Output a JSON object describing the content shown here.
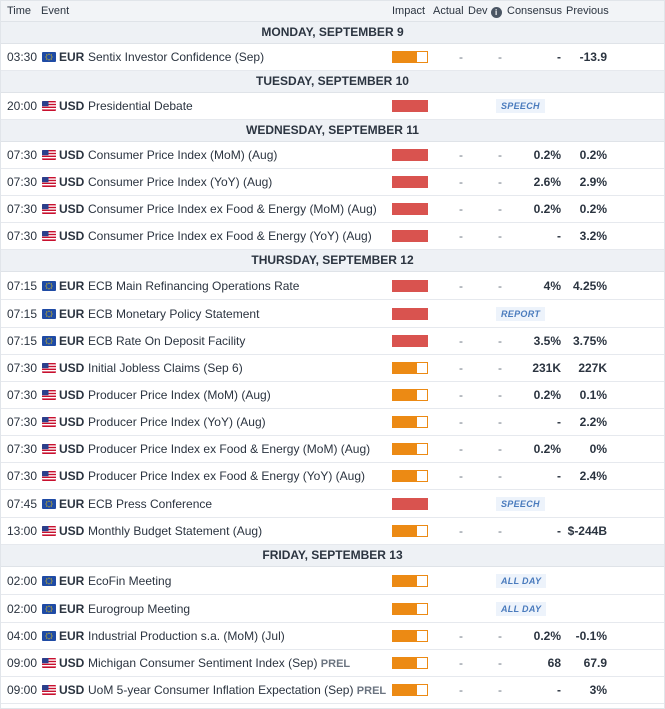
{
  "header": {
    "time": "Time",
    "event": "Event",
    "impact": "Impact",
    "actual": "Actual",
    "dev": "Dev",
    "consensus": "Consensus",
    "previous": "Previous",
    "info_glyph": "i"
  },
  "colors": {
    "high": "#d9534f",
    "medium": "#ec8a14",
    "badge_text": "#4a7bbd"
  },
  "days": [
    {
      "label": "MONDAY, SEPTEMBER 9",
      "rows": [
        {
          "time": "03:30",
          "cur": "EUR",
          "flag": "eu-flag-icon",
          "event": "Sentix Investor Confidence (Sep)",
          "impact": "med",
          "actual": "-",
          "dev": "-",
          "cons": "-",
          "prev": "-13.9",
          "h": 27
        }
      ]
    },
    {
      "label": "TUESDAY, SEPTEMBER 10",
      "rows": [
        {
          "time": "20:00",
          "cur": "USD",
          "flag": "us-flag-icon",
          "event": "Presidential Debate",
          "impact": "high",
          "badge": "SPEECH",
          "h": 27
        }
      ]
    },
    {
      "label": "WEDNESDAY, SEPTEMBER 11",
      "rows": [
        {
          "time": "07:30",
          "cur": "USD",
          "flag": "us-flag-icon",
          "event": "Consumer Price Index (MoM) (Aug)",
          "impact": "high",
          "actual": "-",
          "dev": "-",
          "cons": "0.2%",
          "prev": "0.2%",
          "h": 27
        },
        {
          "time": "07:30",
          "cur": "USD",
          "flag": "us-flag-icon",
          "event": "Consumer Price Index (YoY) (Aug)",
          "impact": "high",
          "actual": "-",
          "dev": "-",
          "cons": "2.6%",
          "prev": "2.9%",
          "h": 27
        },
        {
          "time": "07:30",
          "cur": "USD",
          "flag": "us-flag-icon",
          "event": "Consumer Price Index ex Food & Energy (MoM) (Aug)",
          "impact": "high",
          "actual": "-",
          "dev": "-",
          "cons": "0.2%",
          "prev": "0.2%",
          "h": 27
        },
        {
          "time": "07:30",
          "cur": "USD",
          "flag": "us-flag-icon",
          "event": "Consumer Price Index ex Food & Energy (YoY) (Aug)",
          "impact": "high",
          "actual": "-",
          "dev": "-",
          "cons": "-",
          "prev": "3.2%",
          "h": 27
        }
      ]
    },
    {
      "label": "THURSDAY, SEPTEMBER 12",
      "rows": [
        {
          "time": "07:15",
          "cur": "EUR",
          "flag": "eu-flag-icon",
          "event": "ECB Main Refinancing Operations Rate",
          "impact": "high",
          "actual": "-",
          "dev": "-",
          "cons": "4%",
          "prev": "4.25%",
          "h": 28
        },
        {
          "time": "07:15",
          "cur": "EUR",
          "flag": "eu-flag-icon",
          "event": "ECB Monetary Policy Statement",
          "impact": "high",
          "badge": "REPORT",
          "h": 28
        },
        {
          "time": "07:15",
          "cur": "EUR",
          "flag": "eu-flag-icon",
          "event": "ECB Rate On Deposit Facility",
          "impact": "high",
          "actual": "-",
          "dev": "-",
          "cons": "3.5%",
          "prev": "3.75%",
          "h": 27
        },
        {
          "time": "07:30",
          "cur": "USD",
          "flag": "us-flag-icon",
          "event": "Initial Jobless Claims (Sep 6)",
          "impact": "med",
          "actual": "-",
          "dev": "-",
          "cons": "231K",
          "prev": "227K",
          "h": 27
        },
        {
          "time": "07:30",
          "cur": "USD",
          "flag": "us-flag-icon",
          "event": "Producer Price Index (MoM) (Aug)",
          "impact": "med",
          "actual": "-",
          "dev": "-",
          "cons": "0.2%",
          "prev": "0.1%",
          "h": 27
        },
        {
          "time": "07:30",
          "cur": "USD",
          "flag": "us-flag-icon",
          "event": "Producer Price Index (YoY) (Aug)",
          "impact": "med",
          "actual": "-",
          "dev": "-",
          "cons": "-",
          "prev": "2.2%",
          "h": 27
        },
        {
          "time": "07:30",
          "cur": "USD",
          "flag": "us-flag-icon",
          "event": "Producer Price Index ex Food & Energy (MoM) (Aug)",
          "impact": "med",
          "actual": "-",
          "dev": "-",
          "cons": "0.2%",
          "prev": "0%",
          "h": 27
        },
        {
          "time": "07:30",
          "cur": "USD",
          "flag": "us-flag-icon",
          "event": "Producer Price Index ex Food & Energy (YoY) (Aug)",
          "impact": "med",
          "actual": "-",
          "dev": "-",
          "cons": "-",
          "prev": "2.4%",
          "h": 27
        },
        {
          "time": "07:45",
          "cur": "EUR",
          "flag": "eu-flag-icon",
          "event": "ECB Press Conference",
          "impact": "high",
          "badge": "SPEECH",
          "h": 28
        },
        {
          "time": "13:00",
          "cur": "USD",
          "flag": "us-flag-icon",
          "event": "Monthly Budget Statement (Aug)",
          "impact": "med",
          "actual": "-",
          "dev": "-",
          "cons": "-",
          "prev": "$-244B",
          "h": 27
        }
      ]
    },
    {
      "label": "FRIDAY, SEPTEMBER 13",
      "rows": [
        {
          "time": "02:00",
          "cur": "EUR",
          "flag": "eu-flag-icon",
          "event": "EcoFin Meeting",
          "impact": "med",
          "badge": "ALL DAY",
          "h": 28
        },
        {
          "time": "02:00",
          "cur": "EUR",
          "flag": "eu-flag-icon",
          "event": "Eurogroup Meeting",
          "impact": "med",
          "badge": "ALL DAY",
          "h": 28
        },
        {
          "time": "04:00",
          "cur": "EUR",
          "flag": "eu-flag-icon",
          "event": "Industrial Production s.a. (MoM) (Jul)",
          "impact": "med",
          "actual": "-",
          "dev": "-",
          "cons": "0.2%",
          "prev": "-0.1%",
          "h": 27
        },
        {
          "time": "09:00",
          "cur": "USD",
          "flag": "us-flag-icon",
          "event": "Michigan Consumer Sentiment Index (Sep)",
          "prel": "PREL",
          "impact": "med",
          "actual": "-",
          "dev": "-",
          "cons": "68",
          "prev": "67.9",
          "h": 27
        },
        {
          "time": "09:00",
          "cur": "USD",
          "flag": "us-flag-icon",
          "event": "UoM 5-year Consumer Inflation Expectation (Sep)",
          "prel": "PREL",
          "impact": "med",
          "actual": "-",
          "dev": "-",
          "cons": "-",
          "prev": "3%",
          "h": 27
        }
      ]
    }
  ]
}
